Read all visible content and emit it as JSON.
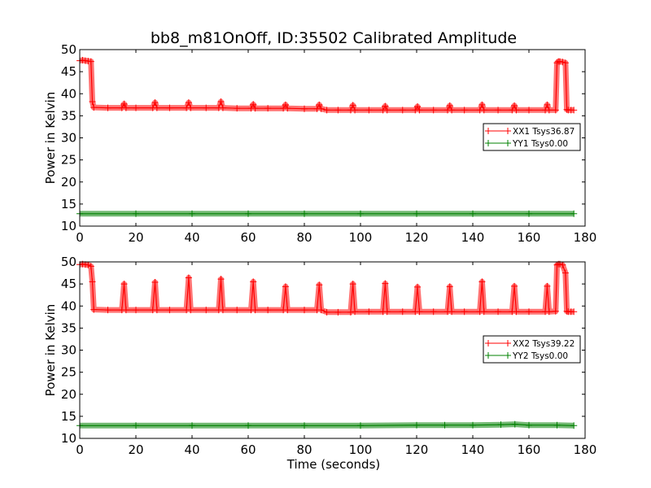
{
  "figure": {
    "title": "bb8_m81OnOff, ID:35502 Calibrated Amplitude",
    "xlabel": "Time (seconds)"
  },
  "colors": {
    "xx": "#ff0000",
    "yy": "#008000",
    "axes": "#000000",
    "background": "#ffffff"
  },
  "chart_data": [
    {
      "type": "line",
      "panel": "top",
      "title": "bb8_m81OnOff, ID:35502 Calibrated Amplitude",
      "xlabel": "",
      "ylabel": "Power in Kelvin",
      "xlim": [
        0,
        180
      ],
      "ylim": [
        10,
        50
      ],
      "xticks": [
        0,
        20,
        40,
        60,
        80,
        100,
        120,
        140,
        160,
        180
      ],
      "yticks": [
        10,
        15,
        20,
        25,
        30,
        35,
        40,
        45,
        50
      ],
      "grid": false,
      "legend_position": "right",
      "series": [
        {
          "name": "XX1 Tsys36.87",
          "color": "#ff0000",
          "marker": "+",
          "values_description": "on/off calibrated amplitude",
          "x": [
            0,
            1,
            2,
            3,
            4,
            4.5,
            5,
            10,
            15,
            15.8,
            16.5,
            20,
            26,
            26.8,
            27.5,
            32,
            38,
            38.8,
            39.5,
            45,
            49.5,
            50.3,
            51,
            56,
            61,
            61.8,
            62.5,
            67,
            72.5,
            73.3,
            74,
            80,
            84.5,
            85.3,
            86,
            88,
            92,
            96.5,
            97.3,
            98,
            103,
            108,
            108.8,
            109.5,
            115,
            119.5,
            120.3,
            121,
            126,
            131,
            131.8,
            132.5,
            137,
            142.5,
            143.3,
            144,
            149,
            154,
            154.8,
            155.5,
            160,
            165.8,
            166.5,
            167.2,
            169.5,
            170,
            170.5,
            171,
            172,
            173,
            173.5,
            174,
            175,
            176
          ],
          "y": [
            47.5,
            47.6,
            47.5,
            47.4,
            47.3,
            38.2,
            36.9,
            36.8,
            36.8,
            37.7,
            36.8,
            36.8,
            36.8,
            38.0,
            36.8,
            36.8,
            36.8,
            38.0,
            36.8,
            36.8,
            36.8,
            38.2,
            36.8,
            36.7,
            36.7,
            37.6,
            36.7,
            36.7,
            36.7,
            37.5,
            36.7,
            36.6,
            36.6,
            37.5,
            36.6,
            36.3,
            36.3,
            36.3,
            37.4,
            36.3,
            36.3,
            36.3,
            37.2,
            36.3,
            36.3,
            36.3,
            37.1,
            36.3,
            36.3,
            36.3,
            37.3,
            36.3,
            36.3,
            36.3,
            37.5,
            36.3,
            36.3,
            36.3,
            37.3,
            36.3,
            36.3,
            36.3,
            37.5,
            36.3,
            36.3,
            47.0,
            47.3,
            47.3,
            47.2,
            47.0,
            36.4,
            36.3,
            36.3,
            36.3
          ]
        },
        {
          "name": "YY1 Tsys0.00",
          "color": "#008000",
          "marker": "+",
          "x": [
            0,
            20,
            40,
            60,
            80,
            100,
            120,
            140,
            160,
            176
          ],
          "y": [
            12.8,
            12.8,
            12.8,
            12.8,
            12.8,
            12.8,
            12.8,
            12.8,
            12.8,
            12.8
          ]
        }
      ]
    },
    {
      "type": "line",
      "panel": "bottom",
      "title": "",
      "xlabel": "Time (seconds)",
      "ylabel": "Power in Kelvin",
      "xlim": [
        0,
        180
      ],
      "ylim": [
        10,
        50
      ],
      "xticks": [
        0,
        20,
        40,
        60,
        80,
        100,
        120,
        140,
        160,
        180
      ],
      "yticks": [
        10,
        15,
        20,
        25,
        30,
        35,
        40,
        45,
        50
      ],
      "grid": false,
      "legend_position": "right",
      "series": [
        {
          "name": "XX2 Tsys39.22",
          "color": "#ff0000",
          "marker": "+",
          "x": [
            0,
            1,
            2,
            3,
            4,
            4.5,
            5,
            10,
            15,
            15.8,
            16.5,
            20,
            26,
            26.8,
            27.5,
            32,
            38,
            38.8,
            39.5,
            45,
            49.5,
            50.3,
            51,
            56,
            61,
            61.8,
            62.5,
            67,
            72.5,
            73.3,
            74,
            80,
            84.5,
            85.3,
            86,
            88,
            92,
            96.5,
            97.3,
            98,
            103,
            108,
            108.8,
            109.5,
            115,
            119.5,
            120.3,
            121,
            126,
            131,
            131.8,
            132.5,
            137,
            142.5,
            143.3,
            144,
            149,
            154,
            154.8,
            155.5,
            160,
            165.8,
            166.5,
            167.2,
            169.5,
            170,
            170.5,
            171,
            172,
            173,
            173.5,
            174,
            175,
            176
          ],
          "y": [
            49.4,
            49.5,
            49.4,
            49.3,
            49.0,
            45.5,
            39.2,
            39.1,
            39.1,
            45.0,
            39.1,
            39.1,
            39.1,
            45.4,
            39.1,
            39.1,
            39.1,
            46.4,
            39.1,
            39.1,
            39.1,
            46.1,
            39.1,
            39.1,
            39.1,
            45.5,
            39.1,
            39.1,
            39.1,
            44.4,
            39.1,
            39.1,
            39.1,
            44.8,
            39.1,
            38.6,
            38.6,
            38.6,
            45.0,
            38.7,
            38.7,
            38.7,
            45.1,
            38.7,
            38.7,
            38.7,
            44.3,
            38.7,
            38.7,
            38.7,
            44.4,
            38.7,
            38.7,
            38.7,
            45.5,
            38.7,
            38.7,
            38.7,
            44.5,
            38.7,
            38.7,
            38.7,
            44.5,
            38.7,
            38.8,
            49.3,
            49.5,
            49.5,
            49.3,
            47.5,
            38.8,
            38.7,
            38.7,
            38.7
          ]
        },
        {
          "name": "YY2 Tsys0.00",
          "color": "#008000",
          "marker": "+",
          "x": [
            0,
            20,
            40,
            60,
            80,
            100,
            120,
            130,
            140,
            150,
            155,
            160,
            170,
            176
          ],
          "y": [
            12.9,
            12.9,
            12.9,
            12.9,
            12.9,
            12.9,
            13.0,
            13.0,
            13.0,
            13.1,
            13.2,
            13.0,
            13.0,
            12.9
          ]
        }
      ]
    }
  ]
}
